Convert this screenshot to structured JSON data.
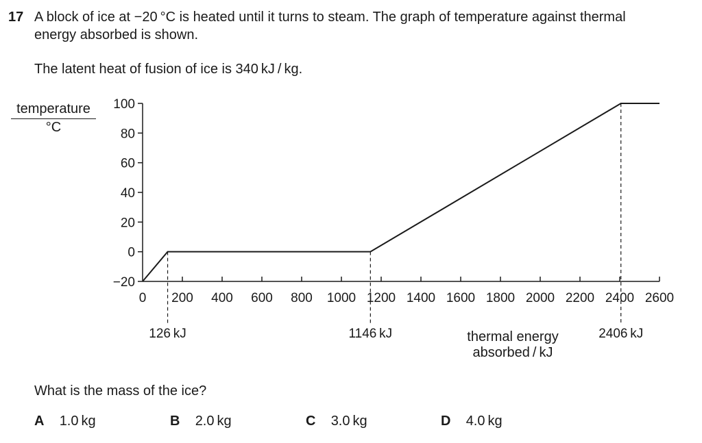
{
  "question": {
    "number": "17",
    "line1": "A block of ice at −20 °C is heated until it turns to steam. The graph of temperature against thermal",
    "line2": "energy absorbed is shown.",
    "latent_heat": "The latent heat of fusion of ice is 340 kJ / kg.",
    "prompt": "What is the mass of the ice?"
  },
  "options": [
    {
      "letter": "A",
      "text": "1.0 kg"
    },
    {
      "letter": "B",
      "text": "2.0 kg"
    },
    {
      "letter": "C",
      "text": "3.0 kg"
    },
    {
      "letter": "D",
      "text": "4.0 kg"
    }
  ],
  "chart_data": {
    "type": "line",
    "title": "",
    "ylabel_top": "temperature",
    "ylabel_unit": "°C",
    "xlabel_line1": "thermal energy",
    "xlabel_line2": "absorbed / kJ",
    "xlim": [
      0,
      2600
    ],
    "ylim": [
      -20,
      100
    ],
    "x_ticks": [
      0,
      200,
      400,
      600,
      800,
      1000,
      1200,
      1400,
      1600,
      1800,
      2000,
      2200,
      2400,
      2600
    ],
    "y_ticks": [
      -20,
      0,
      20,
      40,
      60,
      80,
      100
    ],
    "y_tick_labels": [
      "−20",
      "0",
      "20",
      "40",
      "60",
      "80",
      "100"
    ],
    "grid": false,
    "series": [
      {
        "x": [
          0,
          126,
          1146,
          2406,
          2600
        ],
        "y": [
          -20,
          0,
          0,
          100,
          100
        ]
      }
    ],
    "annotations": [
      {
        "x": 126,
        "y": 0,
        "label": "126 kJ"
      },
      {
        "x": 1146,
        "y": 0,
        "label": "1146 kJ"
      },
      {
        "x": 2406,
        "y": 100,
        "label": "2406 kJ"
      }
    ]
  }
}
